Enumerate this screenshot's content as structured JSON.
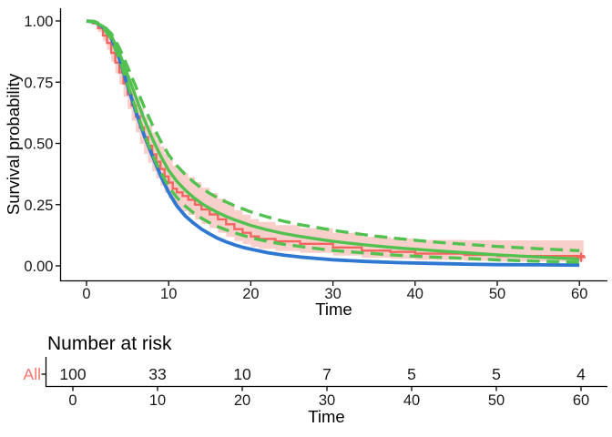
{
  "figure": {
    "background": "#ffffff",
    "axis_color": "#000000",
    "tick_text_color": "#1a1a1a"
  },
  "chart_data": {
    "type": "line",
    "title": "",
    "xlabel": "Time",
    "ylabel": "Survival probability",
    "xlim": [
      0,
      62
    ],
    "ylim": [
      0,
      1
    ],
    "grid": "off",
    "legend": "none",
    "xticks": [
      0,
      10,
      20,
      30,
      40,
      50,
      60
    ],
    "ytick_values": [
      0,
      0.25,
      0.5,
      0.75,
      1
    ],
    "ytick_labels": [
      "0.00",
      "0.25",
      "0.50",
      "0.75",
      "1.00"
    ],
    "km": {
      "name": "Kaplan-Meier estimate (All)",
      "color": "#F4655F",
      "band_name": "Kaplan-Meier 95% CI band",
      "band_color": "#F9CFCC",
      "points": [
        [
          0,
          1.0,
          1.0,
          1.0
        ],
        [
          0.8,
          0.99,
          0.985,
          0.995
        ],
        [
          1.4,
          0.97,
          0.955,
          0.982
        ],
        [
          2,
          0.94,
          0.918,
          0.958
        ],
        [
          2.5,
          0.91,
          0.882,
          0.934
        ],
        [
          3,
          0.87,
          0.834,
          0.903
        ],
        [
          3.5,
          0.83,
          0.786,
          0.87
        ],
        [
          4,
          0.79,
          0.74,
          0.838
        ],
        [
          4.5,
          0.745,
          0.69,
          0.8
        ],
        [
          5,
          0.7,
          0.64,
          0.762
        ],
        [
          5.5,
          0.655,
          0.592,
          0.723
        ],
        [
          6,
          0.61,
          0.545,
          0.684
        ],
        [
          6.5,
          0.565,
          0.498,
          0.644
        ],
        [
          7,
          0.525,
          0.457,
          0.608
        ],
        [
          7.5,
          0.49,
          0.421,
          0.576
        ],
        [
          8,
          0.455,
          0.386,
          0.544
        ],
        [
          8.5,
          0.425,
          0.357,
          0.516
        ],
        [
          9,
          0.395,
          0.327,
          0.487
        ],
        [
          9.5,
          0.365,
          0.298,
          0.458
        ],
        [
          10,
          0.34,
          0.274,
          0.434
        ],
        [
          10.5,
          0.315,
          0.25,
          0.409
        ],
        [
          11,
          0.3,
          0.236,
          0.394
        ],
        [
          11.7,
          0.285,
          0.222,
          0.378
        ],
        [
          12.4,
          0.27,
          0.208,
          0.362
        ],
        [
          13.2,
          0.25,
          0.189,
          0.341
        ],
        [
          14,
          0.23,
          0.171,
          0.319
        ],
        [
          15,
          0.21,
          0.153,
          0.297
        ],
        [
          16,
          0.19,
          0.135,
          0.274
        ],
        [
          17,
          0.17,
          0.118,
          0.251
        ],
        [
          18,
          0.15,
          0.101,
          0.227
        ],
        [
          19,
          0.135,
          0.089,
          0.209
        ],
        [
          20,
          0.12,
          0.077,
          0.191
        ],
        [
          21,
          0.11,
          0.069,
          0.179
        ],
        [
          23,
          0.1,
          0.061,
          0.166
        ],
        [
          26,
          0.09,
          0.053,
          0.154
        ],
        [
          30,
          0.075,
          0.042,
          0.135
        ],
        [
          33.5,
          0.062,
          0.033,
          0.118
        ],
        [
          37,
          0.057,
          0.029,
          0.112
        ],
        [
          40,
          0.05,
          0.024,
          0.106
        ],
        [
          46,
          0.045,
          0.021,
          0.105
        ],
        [
          50,
          0.04,
          0.017,
          0.104
        ],
        [
          60.5,
          0.035,
          0.014,
          0.104
        ]
      ],
      "censor_marks": [
        [
          60.2,
          0.035
        ]
      ]
    },
    "fits": [
      {
        "name": "parametric fit A (solid blue)",
        "color": "#2E78D2",
        "style": "solid",
        "width": 3.8,
        "points": [
          [
            0,
            1
          ],
          [
            1,
            0.995
          ],
          [
            2,
            0.975
          ],
          [
            3,
            0.93
          ],
          [
            4,
            0.845
          ],
          [
            5,
            0.735
          ],
          [
            6,
            0.63
          ],
          [
            7,
            0.535
          ],
          [
            8,
            0.45
          ],
          [
            9,
            0.37
          ],
          [
            10,
            0.3
          ],
          [
            11,
            0.245
          ],
          [
            12,
            0.205
          ],
          [
            13,
            0.175
          ],
          [
            14,
            0.15
          ],
          [
            15,
            0.13
          ],
          [
            16,
            0.112
          ],
          [
            17,
            0.098
          ],
          [
            18,
            0.086
          ],
          [
            19,
            0.076
          ],
          [
            20,
            0.068
          ],
          [
            22,
            0.054
          ],
          [
            24,
            0.044
          ],
          [
            26,
            0.036
          ],
          [
            28,
            0.03
          ],
          [
            30,
            0.025
          ],
          [
            34,
            0.018
          ],
          [
            38,
            0.013
          ],
          [
            42,
            0.01
          ],
          [
            46,
            0.007
          ],
          [
            50,
            0.005
          ],
          [
            55,
            0.004
          ],
          [
            60,
            0.003
          ]
        ]
      },
      {
        "name": "parametric fit B (solid green)",
        "color": "#53C14F",
        "style": "solid",
        "width": 3.4,
        "points": [
          [
            0,
            1
          ],
          [
            1,
            0.996
          ],
          [
            2,
            0.978
          ],
          [
            3,
            0.94
          ],
          [
            4,
            0.87
          ],
          [
            5,
            0.78
          ],
          [
            6,
            0.69
          ],
          [
            7,
            0.6
          ],
          [
            8,
            0.52
          ],
          [
            9,
            0.45
          ],
          [
            10,
            0.39
          ],
          [
            11,
            0.345
          ],
          [
            12,
            0.31
          ],
          [
            13,
            0.28
          ],
          [
            14,
            0.255
          ],
          [
            15,
            0.235
          ],
          [
            16,
            0.217
          ],
          [
            17,
            0.202
          ],
          [
            18,
            0.188
          ],
          [
            20,
            0.165
          ],
          [
            22,
            0.147
          ],
          [
            24,
            0.132
          ],
          [
            26,
            0.12
          ],
          [
            28,
            0.11
          ],
          [
            30,
            0.1
          ],
          [
            34,
            0.085
          ],
          [
            38,
            0.073
          ],
          [
            42,
            0.063
          ],
          [
            46,
            0.054
          ],
          [
            50,
            0.045
          ],
          [
            55,
            0.036
          ],
          [
            60,
            0.028
          ]
        ]
      },
      {
        "name": "fit B upper 95% CI (dashed green)",
        "color": "#53C14F",
        "style": "dashed",
        "width": 3.4,
        "points": [
          [
            0,
            1
          ],
          [
            1,
            0.998
          ],
          [
            2,
            0.982
          ],
          [
            3,
            0.949
          ],
          [
            4,
            0.89
          ],
          [
            5,
            0.812
          ],
          [
            6,
            0.732
          ],
          [
            7,
            0.651
          ],
          [
            8,
            0.577
          ],
          [
            9,
            0.511
          ],
          [
            10,
            0.453
          ],
          [
            11,
            0.409
          ],
          [
            12,
            0.374
          ],
          [
            13,
            0.343
          ],
          [
            14,
            0.317
          ],
          [
            15,
            0.296
          ],
          [
            16,
            0.277
          ],
          [
            17,
            0.261
          ],
          [
            18,
            0.246
          ],
          [
            20,
            0.22
          ],
          [
            22,
            0.2
          ],
          [
            24,
            0.182
          ],
          [
            26,
            0.168
          ],
          [
            28,
            0.157
          ],
          [
            30,
            0.145
          ],
          [
            34,
            0.126
          ],
          [
            38,
            0.111
          ],
          [
            42,
            0.098
          ],
          [
            46,
            0.088
          ],
          [
            50,
            0.079
          ],
          [
            55,
            0.07
          ],
          [
            60,
            0.062
          ]
        ]
      },
      {
        "name": "fit B lower 95% CI (dashed green)",
        "color": "#53C14F",
        "style": "dashed",
        "width": 3.4,
        "points": [
          [
            0,
            1
          ],
          [
            1,
            0.995
          ],
          [
            2,
            0.974
          ],
          [
            3,
            0.928
          ],
          [
            4,
            0.846
          ],
          [
            5,
            0.742
          ],
          [
            6,
            0.641
          ],
          [
            7,
            0.542
          ],
          [
            8,
            0.456
          ],
          [
            9,
            0.384
          ],
          [
            10,
            0.323
          ],
          [
            11,
            0.279
          ],
          [
            12,
            0.245
          ],
          [
            13,
            0.217
          ],
          [
            14,
            0.194
          ],
          [
            15,
            0.176
          ],
          [
            16,
            0.16
          ],
          [
            17,
            0.147
          ],
          [
            18,
            0.135
          ],
          [
            20,
            0.115
          ],
          [
            22,
            0.1
          ],
          [
            24,
            0.088
          ],
          [
            26,
            0.079
          ],
          [
            28,
            0.071
          ],
          [
            30,
            0.063
          ],
          [
            34,
            0.052
          ],
          [
            38,
            0.043
          ],
          [
            42,
            0.036
          ],
          [
            46,
            0.031
          ],
          [
            50,
            0.024
          ],
          [
            55,
            0.019
          ],
          [
            60,
            0.015
          ]
        ]
      }
    ]
  },
  "risk_table": {
    "title": "Number at risk",
    "xlabel": "Time",
    "times": [
      0,
      10,
      20,
      30,
      40,
      50,
      60
    ],
    "label_color": "#F8766D",
    "rows": [
      {
        "label": "All",
        "counts": [
          "100",
          "33",
          "10",
          "7",
          "5",
          "5",
          "4"
        ]
      }
    ]
  }
}
